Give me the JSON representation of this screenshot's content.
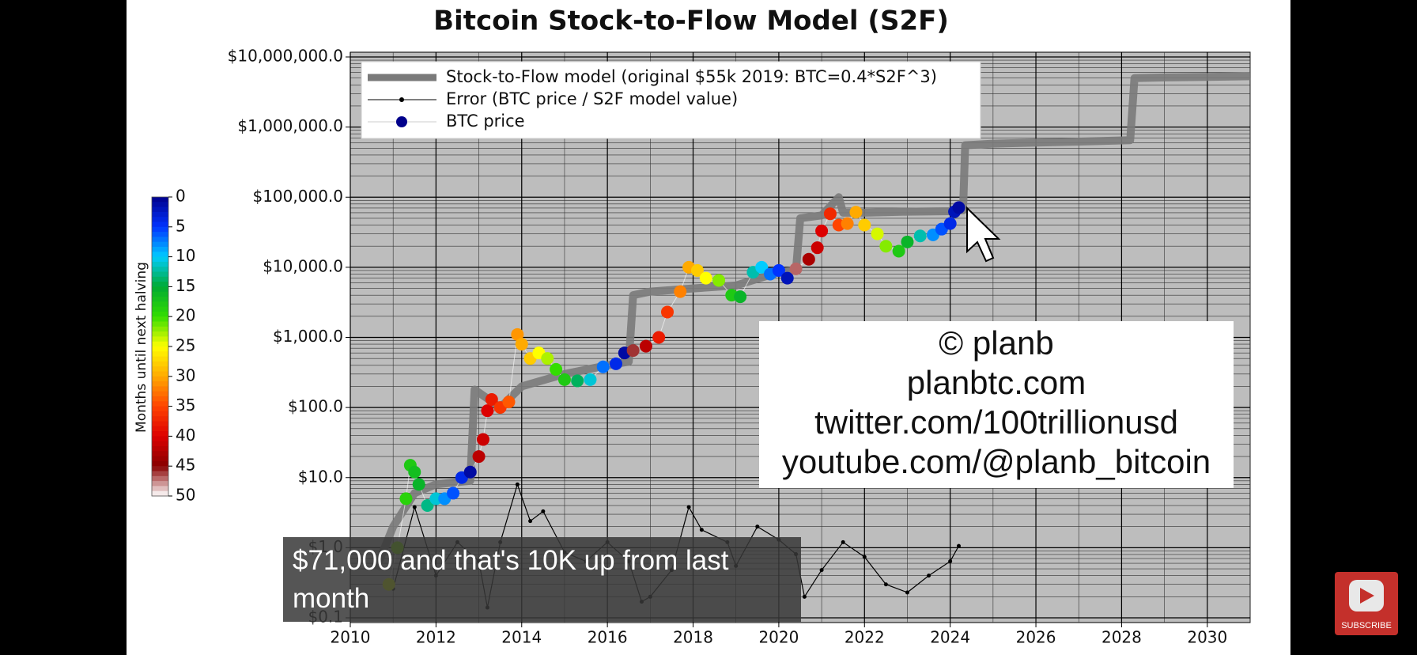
{
  "chart_data": {
    "type": "line",
    "title": "Bitcoin Stock-to-Flow Model (S2F)",
    "ylog": true,
    "grid": true,
    "minor_grid": true,
    "legend": "upper left",
    "xlim": [
      2010,
      2031
    ],
    "ylim": [
      0.1,
      10000000
    ],
    "xticks": [
      2010,
      2012,
      2014,
      2016,
      2018,
      2020,
      2022,
      2024,
      2026,
      2028,
      2030
    ],
    "yticks": [
      {
        "value": 0.1,
        "label": "$0.1"
      },
      {
        "value": 1,
        "label": "$1.0"
      },
      {
        "value": 10,
        "label": "$10.0"
      },
      {
        "value": 100,
        "label": "$100.0"
      },
      {
        "value": 1000,
        "label": "$1,000.0"
      },
      {
        "value": 10000,
        "label": "$10,000.0"
      },
      {
        "value": 100000,
        "label": "$100,000.0"
      },
      {
        "value": 1000000,
        "label": "$1,000,000.0"
      },
      {
        "value": 10000000,
        "label": "$10,000,000.0"
      }
    ],
    "series": [
      {
        "name": "Stock-to-Flow model (original $55k 2019:  BTC=0.4*S2F^3)",
        "color": "#7a7a7a",
        "style": "thick-line",
        "x": [
          2010.6,
          2011.0,
          2011.5,
          2012.0,
          2012.8,
          2012.9,
          2013.5,
          2014.0,
          2015.0,
          2016.0,
          2016.5,
          2016.6,
          2017.0,
          2018.0,
          2019.0,
          2020.0,
          2020.4,
          2020.5,
          2021.0,
          2021.4,
          2021.5,
          2022.0,
          2023.0,
          2024.0,
          2024.3,
          2024.35,
          2025.0,
          2026.0,
          2027.0,
          2028.2,
          2028.3,
          2029.0,
          2030.0,
          2031.0
        ],
        "values": [
          0.5,
          2,
          6,
          8,
          9,
          180,
          100,
          200,
          300,
          400,
          450,
          4000,
          4500,
          5000,
          5500,
          8500,
          9000,
          50000,
          55000,
          100000,
          60000,
          60000,
          62000,
          63000,
          65000,
          550000,
          580000,
          600000,
          620000,
          650000,
          5000000,
          5100000,
          5200000,
          5300000
        ]
      },
      {
        "name": "Error (BTC price / S2F model value)",
        "color": "#000000",
        "style": "line-dots",
        "x": [
          2011.0,
          2011.5,
          2012.0,
          2012.5,
          2013.0,
          2013.2,
          2013.5,
          2013.9,
          2014.2,
          2014.5,
          2015.0,
          2015.5,
          2016.0,
          2016.5,
          2016.8,
          2017.0,
          2017.5,
          2017.9,
          2018.2,
          2018.8,
          2019.0,
          2019.5,
          2020.0,
          2020.4,
          2020.6,
          2021.0,
          2021.5,
          2022.0,
          2022.5,
          2023.0,
          2023.5,
          2024.0,
          2024.2
        ],
        "values": [
          0.26,
          3.8,
          0.4,
          1.2,
          0.64,
          0.14,
          1.2,
          8,
          2.4,
          3.3,
          0.86,
          0.64,
          1.2,
          0.64,
          0.17,
          0.2,
          0.48,
          3.8,
          1.8,
          1.2,
          0.55,
          2,
          1.3,
          0.81,
          0.2,
          0.48,
          1.2,
          0.74,
          0.3,
          0.23,
          0.4,
          0.64,
          1.06
        ]
      },
      {
        "name": "BTC price",
        "color": "#00008b",
        "style": "colored-dots",
        "x": [
          2010.9,
          2011.1,
          2011.3,
          2011.4,
          2011.5,
          2011.6,
          2011.8,
          2012.0,
          2012.2,
          2012.4,
          2012.6,
          2012.8,
          2013.0,
          2013.1,
          2013.2,
          2013.3,
          2013.5,
          2013.7,
          2013.9,
          2014.0,
          2014.2,
          2014.4,
          2014.6,
          2014.8,
          2015.0,
          2015.3,
          2015.6,
          2015.9,
          2016.2,
          2016.4,
          2016.6,
          2016.9,
          2017.2,
          2017.4,
          2017.7,
          2017.9,
          2018.1,
          2018.3,
          2018.6,
          2018.9,
          2019.1,
          2019.4,
          2019.6,
          2019.8,
          2020.0,
          2020.2,
          2020.4,
          2020.7,
          2020.9,
          2021.0,
          2021.2,
          2021.4,
          2021.6,
          2021.8,
          2022.0,
          2022.3,
          2022.5,
          2022.8,
          2023.0,
          2023.3,
          2023.6,
          2023.8,
          2024.0,
          2024.1,
          2024.2
        ],
        "values": [
          0.3,
          1,
          5,
          15,
          12,
          8,
          4,
          5,
          5,
          6,
          10,
          12,
          20,
          35,
          90,
          130,
          100,
          120,
          1100,
          800,
          500,
          600,
          500,
          350,
          250,
          240,
          250,
          380,
          420,
          600,
          650,
          750,
          1000,
          2300,
          4500,
          10000,
          9000,
          7000,
          6500,
          4000,
          3800,
          8500,
          10000,
          8000,
          9000,
          7000,
          9500,
          13000,
          19000,
          33000,
          58000,
          40000,
          42000,
          61000,
          40000,
          30000,
          20000,
          17000,
          23000,
          28000,
          29000,
          35000,
          42000,
          62000,
          71000
        ],
        "months": [
          24,
          22,
          19,
          18,
          17,
          16,
          13,
          11,
          8,
          6,
          4,
          1,
          42,
          41,
          40,
          38,
          36,
          34,
          31,
          30,
          28,
          25,
          23,
          20,
          18,
          14,
          11,
          7,
          4,
          1,
          46,
          42,
          38,
          36,
          32,
          30,
          28,
          25,
          22,
          18,
          16,
          12,
          10,
          7,
          5,
          2,
          47,
          43,
          41,
          40,
          37,
          35,
          32,
          30,
          28,
          24,
          22,
          18,
          16,
          12,
          8,
          6,
          4,
          2,
          1
        ]
      }
    ],
    "colorbar": {
      "label": "Months until next halving",
      "lim": [
        0,
        50
      ],
      "ticks": [
        0,
        5,
        10,
        15,
        20,
        25,
        30,
        35,
        40,
        45,
        50
      ],
      "colors": [
        "#00008b",
        "#0033ff",
        "#00ccff",
        "#00aa33",
        "#33dd00",
        "#ffff00",
        "#ffaa00",
        "#ff4400",
        "#dd0000",
        "#880000",
        "#ffffff"
      ]
    },
    "annotations": [
      "© planb",
      "planbtc.com",
      "twitter.com/100trillionusd",
      "youtube.com/@planb_bitcoin"
    ]
  },
  "caption": "$71,000 and that's 10K up from last month",
  "subscribe": "SUBSCRIBE"
}
